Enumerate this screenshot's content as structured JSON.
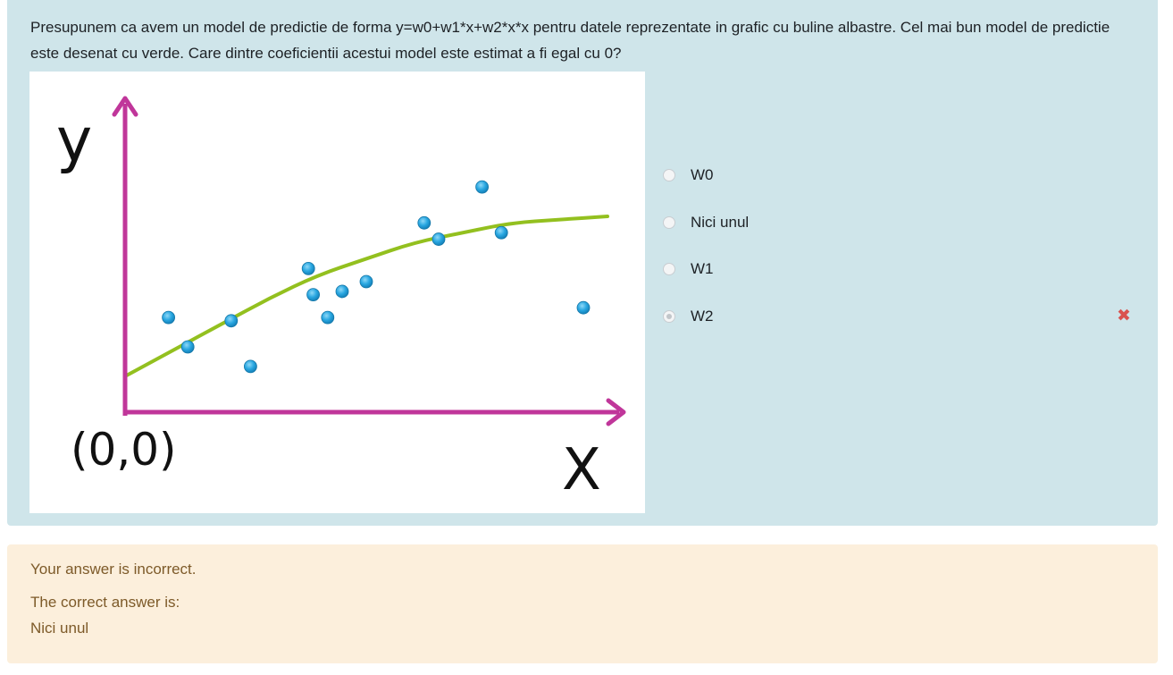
{
  "question": {
    "text": "Presupunem ca avem un model de predictie de forma y=w0+w1*x+w2*x*x pentru datele reprezentate in grafic cu buline albastre. Cel mai bun model de predictie este desenat cu verde. Care dintre coeficientii acestui model este estimat a fi egal cu 0?"
  },
  "chart_data": {
    "type": "scatter",
    "y_axis_label": "y",
    "x_axis_label": "X",
    "origin_label": "(0,0)",
    "grid": false,
    "colors": {
      "axes": "#c0369a",
      "fit_curve": "#93c01f",
      "points": "#29a7e1"
    },
    "points": [
      {
        "x": 0.09,
        "y": 0.29
      },
      {
        "x": 0.13,
        "y": 0.2
      },
      {
        "x": 0.22,
        "y": 0.28
      },
      {
        "x": 0.26,
        "y": 0.14
      },
      {
        "x": 0.38,
        "y": 0.44
      },
      {
        "x": 0.39,
        "y": 0.36
      },
      {
        "x": 0.42,
        "y": 0.29
      },
      {
        "x": 0.45,
        "y": 0.37
      },
      {
        "x": 0.5,
        "y": 0.4
      },
      {
        "x": 0.62,
        "y": 0.58
      },
      {
        "x": 0.65,
        "y": 0.53
      },
      {
        "x": 0.74,
        "y": 0.69
      },
      {
        "x": 0.78,
        "y": 0.55
      },
      {
        "x": 0.95,
        "y": 0.32
      }
    ],
    "fit_curve": [
      {
        "x": 0.0,
        "y": 0.11
      },
      {
        "x": 0.1,
        "y": 0.19
      },
      {
        "x": 0.2,
        "y": 0.27
      },
      {
        "x": 0.3,
        "y": 0.35
      },
      {
        "x": 0.4,
        "y": 0.42
      },
      {
        "x": 0.5,
        "y": 0.47
      },
      {
        "x": 0.6,
        "y": 0.52
      },
      {
        "x": 0.7,
        "y": 0.55
      },
      {
        "x": 0.8,
        "y": 0.58
      },
      {
        "x": 0.9,
        "y": 0.59
      },
      {
        "x": 1.0,
        "y": 0.6
      }
    ]
  },
  "answers": {
    "options": [
      {
        "label": "W0",
        "selected": false
      },
      {
        "label": "Nici unul",
        "selected": false
      },
      {
        "label": "W1",
        "selected": false
      },
      {
        "label": "W2",
        "selected": true
      }
    ],
    "incorrect_mark": "✖"
  },
  "feedback": {
    "result": "Your answer is incorrect.",
    "correct_intro": "The correct answer is:",
    "correct_value": "Nici unul"
  }
}
